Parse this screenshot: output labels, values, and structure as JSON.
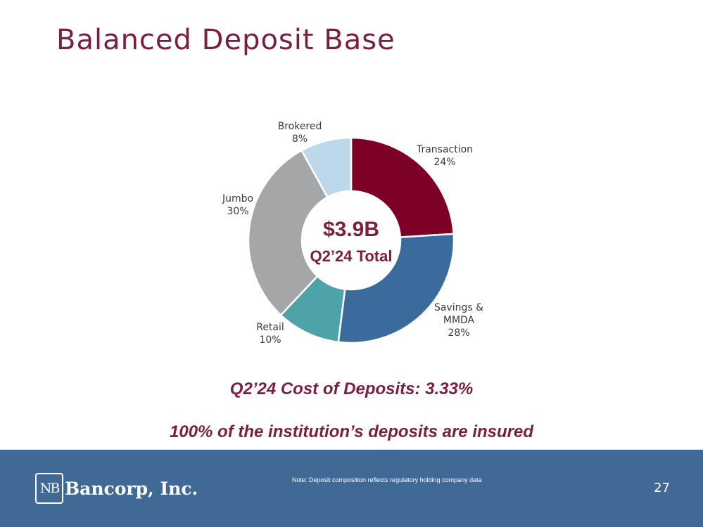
{
  "slide": {
    "title": "Balanced Deposit Base",
    "cost_of_deposits": "Q2’24 Cost of Deposits: 3.33%",
    "insured_note": "100% of the institution’s deposits are insured"
  },
  "footer": {
    "logo_mark": "NB",
    "logo_name": "Bancorp, Inc.",
    "note": "Note: Deposit composition reflects regulatory holding company data",
    "page_number": "27"
  },
  "chart_data": {
    "type": "pie",
    "donut": true,
    "center_value": "$3.9B",
    "center_caption": "Q2’24 Total",
    "slices": [
      {
        "label": "Transaction",
        "value": 24,
        "value_label": "24%",
        "color": "#7d0027"
      },
      {
        "label": "Savings &\nMMDA",
        "value": 28,
        "value_label": "28%",
        "color": "#3a6b9c"
      },
      {
        "label": "Retail",
        "value": 10,
        "value_label": "10%",
        "color": "#4ea3a8"
      },
      {
        "label": "Jumbo",
        "value": 30,
        "value_label": "30%",
        "color": "#a5a6a8"
      },
      {
        "label": "Brokered",
        "value": 8,
        "value_label": "8%",
        "color": "#bcd8ea"
      }
    ]
  }
}
